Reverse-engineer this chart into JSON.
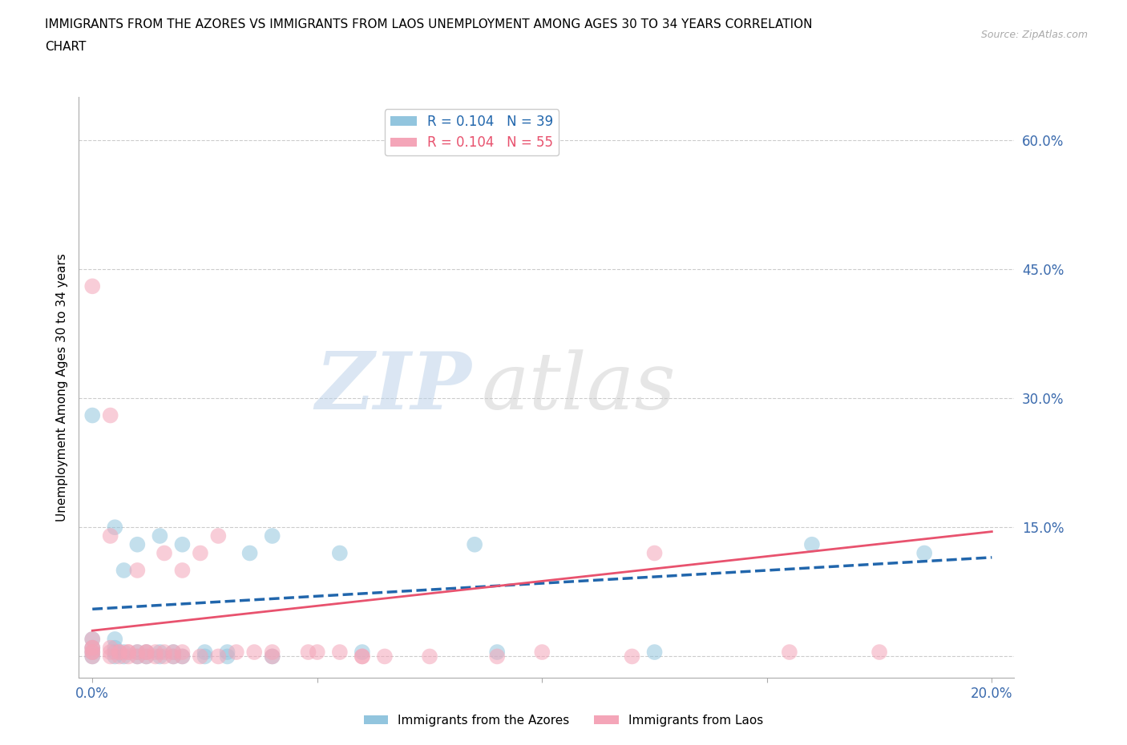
{
  "title_line1": "IMMIGRANTS FROM THE AZORES VS IMMIGRANTS FROM LAOS UNEMPLOYMENT AMONG AGES 30 TO 34 YEARS CORRELATION",
  "title_line2": "CHART",
  "source": "Source: ZipAtlas.com",
  "ylabel": "Unemployment Among Ages 30 to 34 years",
  "x_ticks": [
    0.0,
    0.05,
    0.1,
    0.15,
    0.2
  ],
  "x_tick_labels": [
    "0.0%",
    "",
    "",
    "",
    "20.0%"
  ],
  "y_ticks": [
    0.0,
    0.15,
    0.3,
    0.45,
    0.6
  ],
  "y_tick_labels": [
    "",
    "15.0%",
    "30.0%",
    "45.0%",
    "60.0%"
  ],
  "xlim": [
    -0.003,
    0.205
  ],
  "ylim": [
    -0.025,
    0.65
  ],
  "azores_color": "#92c5de",
  "laos_color": "#f4a5b8",
  "azores_line_color": "#2166ac",
  "laos_line_color": "#e8526e",
  "R_azores": 0.104,
  "N_azores": 39,
  "R_laos": 0.104,
  "N_laos": 55,
  "legend_label_azores": "Immigrants from the Azores",
  "legend_label_laos": "Immigrants from Laos",
  "watermark_zip": "ZIP",
  "watermark_atlas": "atlas",
  "azores_x": [
    0.0,
    0.0,
    0.0,
    0.0,
    0.0,
    0.005,
    0.005,
    0.005,
    0.005,
    0.005,
    0.007,
    0.007,
    0.007,
    0.01,
    0.01,
    0.01,
    0.012,
    0.012,
    0.015,
    0.015,
    0.015,
    0.018,
    0.018,
    0.02,
    0.02,
    0.025,
    0.025,
    0.03,
    0.03,
    0.035,
    0.04,
    0.04,
    0.055,
    0.06,
    0.085,
    0.09,
    0.125,
    0.16,
    0.185
  ],
  "azores_y": [
    0.0,
    0.005,
    0.01,
    0.02,
    0.28,
    0.0,
    0.005,
    0.01,
    0.02,
    0.15,
    0.0,
    0.005,
    0.1,
    0.0,
    0.005,
    0.13,
    0.0,
    0.005,
    0.0,
    0.005,
    0.14,
    0.0,
    0.005,
    0.0,
    0.13,
    0.0,
    0.005,
    0.0,
    0.005,
    0.12,
    0.0,
    0.14,
    0.12,
    0.005,
    0.13,
    0.005,
    0.005,
    0.13,
    0.12
  ],
  "laos_x": [
    0.0,
    0.0,
    0.0,
    0.0,
    0.0,
    0.0,
    0.0,
    0.004,
    0.004,
    0.004,
    0.004,
    0.004,
    0.006,
    0.006,
    0.006,
    0.008,
    0.008,
    0.008,
    0.01,
    0.01,
    0.01,
    0.012,
    0.012,
    0.012,
    0.014,
    0.014,
    0.016,
    0.016,
    0.016,
    0.018,
    0.018,
    0.02,
    0.02,
    0.02,
    0.024,
    0.024,
    0.028,
    0.028,
    0.032,
    0.036,
    0.04,
    0.04,
    0.048,
    0.05,
    0.055,
    0.06,
    0.06,
    0.065,
    0.075,
    0.09,
    0.1,
    0.12,
    0.125,
    0.155,
    0.175
  ],
  "laos_y": [
    0.0,
    0.005,
    0.01,
    0.02,
    0.43,
    0.005,
    0.01,
    0.0,
    0.005,
    0.01,
    0.14,
    0.28,
    0.0,
    0.005,
    0.005,
    0.0,
    0.005,
    0.005,
    0.0,
    0.005,
    0.1,
    0.0,
    0.005,
    0.005,
    0.0,
    0.005,
    0.0,
    0.005,
    0.12,
    0.0,
    0.005,
    0.0,
    0.005,
    0.1,
    0.0,
    0.12,
    0.0,
    0.14,
    0.005,
    0.005,
    0.0,
    0.005,
    0.005,
    0.005,
    0.005,
    0.0,
    0.0,
    0.0,
    0.0,
    0.0,
    0.005,
    0.0,
    0.12,
    0.005,
    0.005
  ]
}
